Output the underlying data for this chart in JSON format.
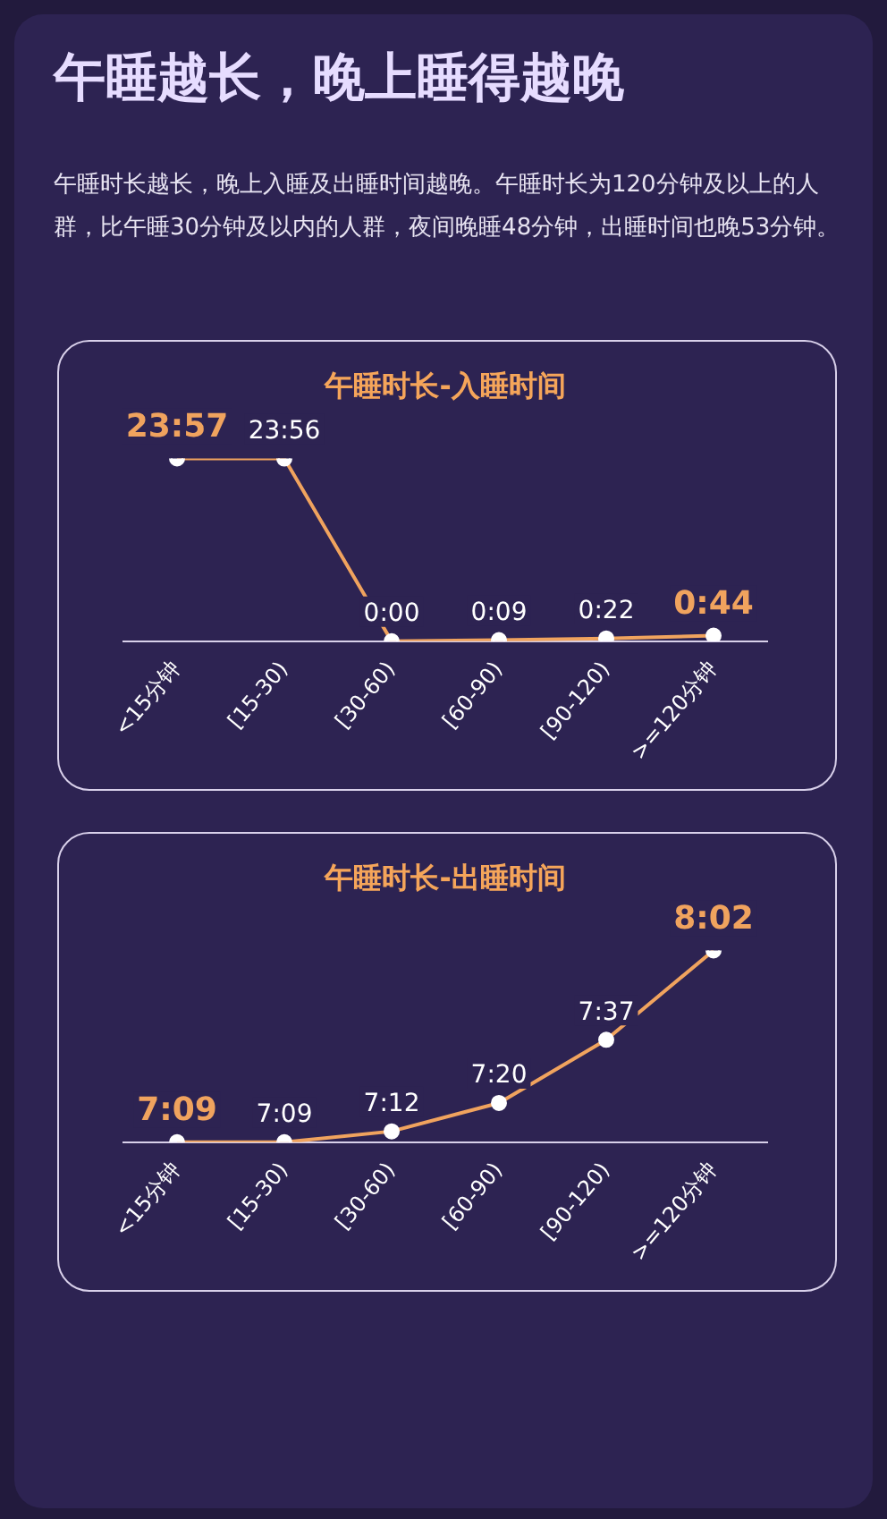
{
  "chart_data": [
    {
      "type": "other",
      "title": "午睡越长，晚上睡得越晚",
      "subtitle": "午睡时长越长，晚上入睡及出睡时间越晚。午睡时长为120分钟及以上的人群，比午睡30分钟及以内的人群，夜间晚睡48分钟，出睡时间也晚53分钟。"
    },
    {
      "type": "line",
      "title": "午睡时长-入睡时间",
      "categories": [
        "<15分钟",
        "[15-30)",
        "[30-60)",
        "[60-90)",
        "[90-120)",
        ">=120分钟"
      ],
      "series": [
        {
          "color": "#f0a35e",
          "values": [
            23.95,
            23.93,
            0,
            0.15,
            0.37,
            0.73
          ],
          "value_labels": [
            "23:57",
            "23:56",
            "0:00",
            "0:09",
            "0:22",
            "0:44"
          ]
        }
      ],
      "marker": "circle",
      "line_style": "solid",
      "legend": false,
      "grid": false,
      "tick_labels": "x"
    },
    {
      "type": "line",
      "title": "午睡时长-出睡时间",
      "categories": [
        "<15分钟",
        "[15-30)",
        "[30-60)",
        "[60-90)",
        "[90-120)",
        ">=120分钟"
      ],
      "series": [
        {
          "color": "#f0a35e",
          "values": [
            7.15,
            7.15,
            7.2,
            7.33,
            7.62,
            8.03
          ],
          "value_labels": [
            "7:09",
            "7:09",
            "7:12",
            "7:20",
            "7:37",
            "8:02"
          ]
        }
      ],
      "marker": "circle",
      "line_style": "solid",
      "legend": false,
      "grid": false,
      "tick_labels": "x"
    }
  ]
}
